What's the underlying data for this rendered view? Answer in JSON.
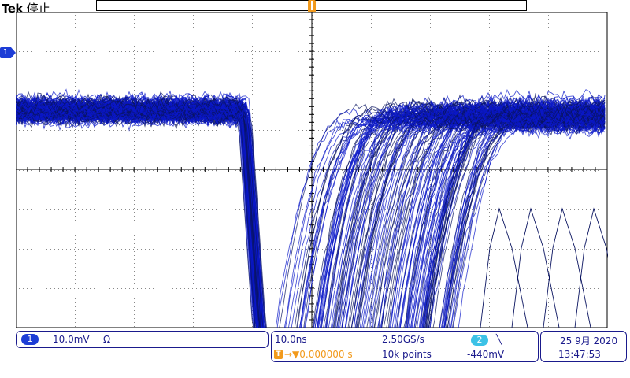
{
  "header": {
    "brand": "Tek",
    "state": "停止"
  },
  "markers": {
    "trigger_label": "T",
    "channel1_label": "1"
  },
  "channel1": {
    "badge": "1",
    "scale": "10.0mV",
    "coupling": "Ω"
  },
  "acquisition": {
    "timebase": "10.0ns",
    "sample_rate": "2.50GS/s",
    "trigger_badge": "T",
    "trigger_delay": "→▼0.000000 s",
    "record_length": "10k points",
    "trigger_source_badge": "2",
    "trigger_slope": "╲",
    "trigger_level": "-440mV"
  },
  "datetime": {
    "date": "25 9月 2020",
    "time": "13:47:53"
  },
  "colors": {
    "trace": "#0b18c8",
    "trace_dark": "#0a1460",
    "accent": "#f29a1c",
    "ch2": "#3cc2e6"
  }
}
